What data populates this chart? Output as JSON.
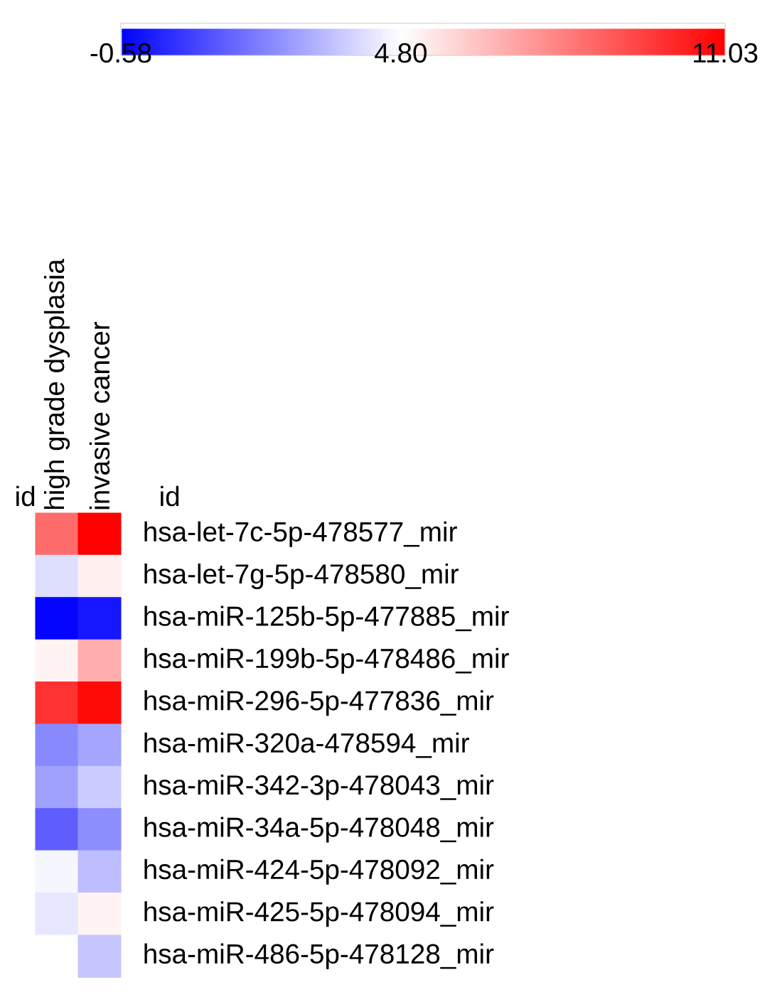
{
  "chart_data": {
    "type": "heatmap",
    "categories": [
      "high grade dysplasia",
      "invasive cancer"
    ],
    "y_categories": [
      "hsa-let-7c-5p-478577_mir",
      "hsa-let-7g-5p-478580_mir",
      "hsa-miR-125b-5p-477885_mir",
      "hsa-miR-199b-5p-478486_mir",
      "hsa-miR-296-5p-477836_mir",
      "hsa-miR-320a-478594_mir",
      "hsa-miR-342-3p-478043_mir",
      "hsa-miR-34a-5p-478048_mir",
      "hsa-miR-424-5p-478092_mir",
      "hsa-miR-425-5p-478094_mir",
      "hsa-miR-486-5p-478128_mir"
    ],
    "cells": [
      [
        8.4,
        11.0
      ],
      [
        4.1,
        5.2
      ],
      [
        -0.5,
        -0.1
      ],
      [
        5.1,
        6.8
      ],
      [
        9.8,
        10.8
      ],
      [
        2.3,
        2.9
      ],
      [
        2.8,
        3.7
      ],
      [
        1.4,
        2.4
      ],
      [
        4.6,
        3.4
      ],
      [
        4.3,
        5.1
      ],
      [
        4.8,
        3.6
      ]
    ],
    "clim": [
      -0.58,
      11.03
    ],
    "cticks": [
      {
        "value": -0.58,
        "label": "-0.58"
      },
      {
        "value": 4.8,
        "label": "4.80"
      },
      {
        "value": 11.03,
        "label": "11.03"
      }
    ],
    "annotations": [
      "id",
      "id"
    ]
  }
}
